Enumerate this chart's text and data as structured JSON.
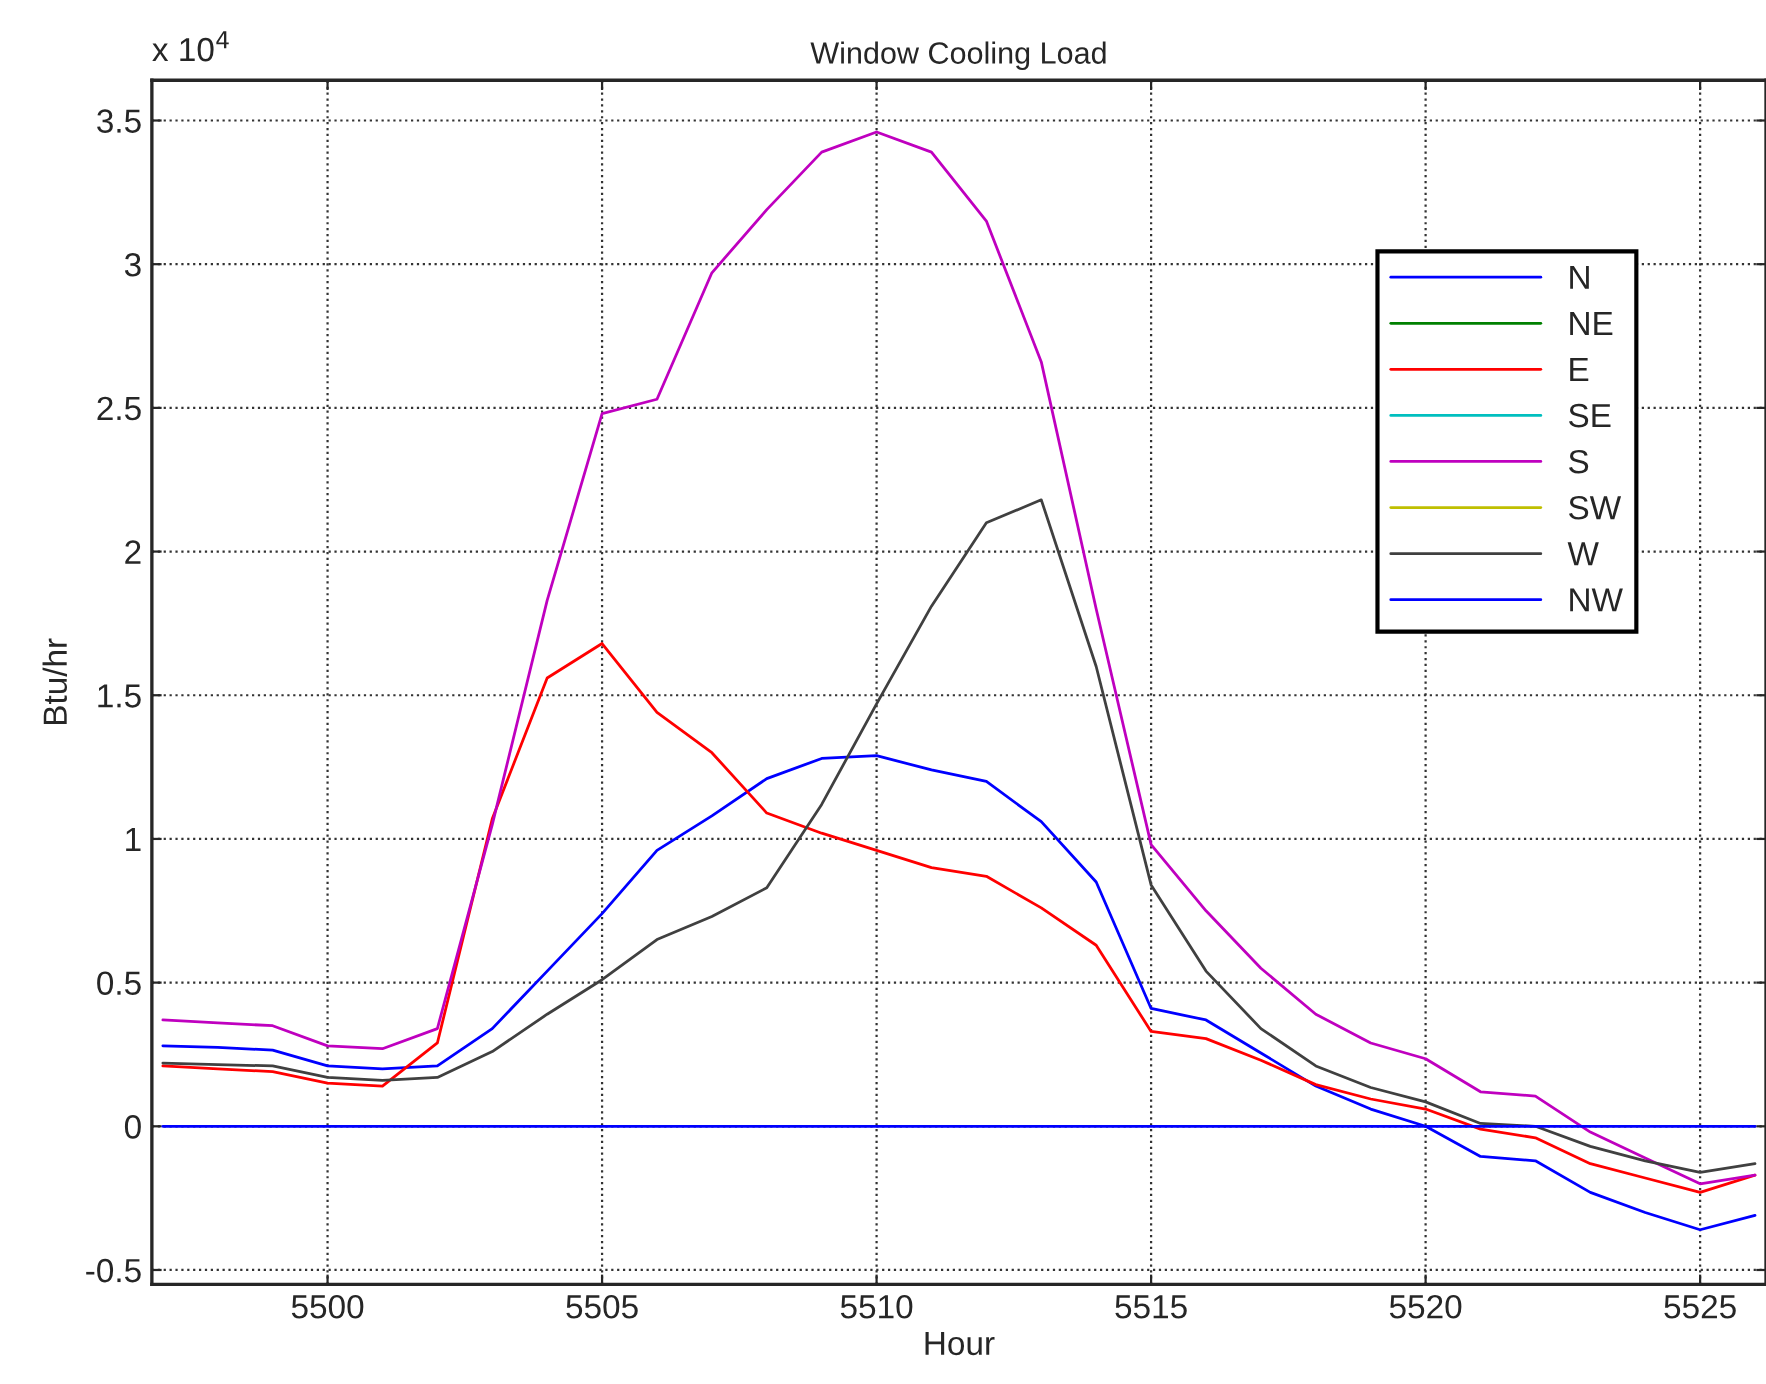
{
  "chart_data": {
    "type": "line",
    "title": "Window Cooling Load",
    "xlabel": "Hour",
    "ylabel": "Btu/hr",
    "annotations": [
      "x 10$^{4}$"
    ],
    "x": [
      5497,
      5498,
      5499,
      5500,
      5501,
      5502,
      5503,
      5504,
      5505,
      5506,
      5507,
      5508,
      5509,
      5510,
      5511,
      5512,
      5513,
      5514,
      5515,
      5516,
      5517,
      5518,
      5519,
      5520,
      5521,
      5522,
      5523,
      5524,
      5525,
      5526
    ],
    "series": [
      {
        "name": "N",
        "color": "#0000ff",
        "values": [
          0.28,
          0.275,
          0.265,
          0.21,
          0.2,
          0.21,
          0.34,
          0.54,
          0.74,
          0.96,
          1.08,
          1.21,
          1.28,
          1.29,
          1.24,
          1.2,
          1.06,
          0.85,
          0.41,
          0.37,
          0.255,
          0.14,
          0.06,
          0,
          -0.105,
          -0.12,
          -0.23,
          -0.3,
          -0.36,
          -0.31
        ]
      },
      {
        "name": "NE",
        "color": "#008000",
        "values": [
          null,
          null,
          null,
          null,
          null,
          null,
          null,
          null,
          null,
          null,
          null,
          null,
          null,
          null,
          null,
          null,
          null,
          null,
          null,
          null,
          null,
          null,
          null,
          null,
          null,
          null,
          null,
          null,
          null,
          null
        ]
      },
      {
        "name": "E",
        "color": "#ff0000",
        "values": [
          0.21,
          0.2,
          0.19,
          0.15,
          0.14,
          0.29,
          1.07,
          1.56,
          1.68,
          1.44,
          1.3,
          1.09,
          1.02,
          0.96,
          0.9,
          0.87,
          0.76,
          0.63,
          0.33,
          0.305,
          0.23,
          0.145,
          0.095,
          0.06,
          -0.01,
          -0.04,
          -0.13,
          -0.18,
          -0.23,
          -0.17
        ]
      },
      {
        "name": "SE",
        "color": "#00bfbf",
        "values": [
          null,
          null,
          null,
          null,
          null,
          null,
          null,
          null,
          null,
          null,
          null,
          null,
          null,
          null,
          null,
          null,
          null,
          null,
          null,
          null,
          null,
          null,
          null,
          null,
          null,
          null,
          null,
          null,
          null,
          null
        ]
      },
      {
        "name": "S",
        "color": "#bf00bf",
        "values": [
          0.37,
          0.36,
          0.35,
          0.28,
          0.27,
          0.34,
          1.05,
          1.83,
          2.48,
          2.53,
          2.97,
          3.19,
          3.39,
          3.46,
          3.39,
          3.15,
          2.66,
          1.8,
          0.98,
          0.75,
          0.55,
          0.39,
          0.29,
          0.235,
          0.12,
          0.105,
          -0.02,
          -0.11,
          -0.2,
          -0.17
        ]
      },
      {
        "name": "SW",
        "color": "#bfbf00",
        "values": [
          null,
          null,
          null,
          null,
          null,
          null,
          null,
          null,
          null,
          null,
          null,
          null,
          null,
          null,
          null,
          null,
          null,
          null,
          null,
          null,
          null,
          null,
          null,
          null,
          null,
          null,
          null,
          null,
          null,
          null
        ]
      },
      {
        "name": "W",
        "color": "#404040",
        "values": [
          0.22,
          0.215,
          0.21,
          0.17,
          0.16,
          0.17,
          0.26,
          0.39,
          0.51,
          0.65,
          0.73,
          0.83,
          1.12,
          1.47,
          1.81,
          2.1,
          2.18,
          1.6,
          0.84,
          0.54,
          0.34,
          0.21,
          0.135,
          0.085,
          0.01,
          0,
          -0.07,
          -0.12,
          -0.16,
          -0.13
        ]
      },
      {
        "name": "NW",
        "color": "#0000ff",
        "values": [
          0,
          0,
          0,
          0,
          0,
          0,
          0,
          0,
          0,
          0,
          0,
          0,
          0,
          0,
          0,
          0,
          0,
          0,
          0,
          0,
          0,
          0,
          0,
          0,
          0,
          0,
          0,
          0,
          0,
          0
        ]
      }
    ],
    "xlim": [
      5496.8,
      5526.2
    ],
    "xticks": [
      5500,
      5505,
      5510,
      5515,
      5520,
      5525
    ],
    "ylim": [
      -0.55,
      3.64
    ],
    "yticks": [
      -0.5,
      0,
      0.5,
      1,
      1.5,
      2,
      2.5,
      3,
      3.5
    ],
    "grid": true,
    "legend": "right",
    "line_style": "solid",
    "marker": "none"
  }
}
